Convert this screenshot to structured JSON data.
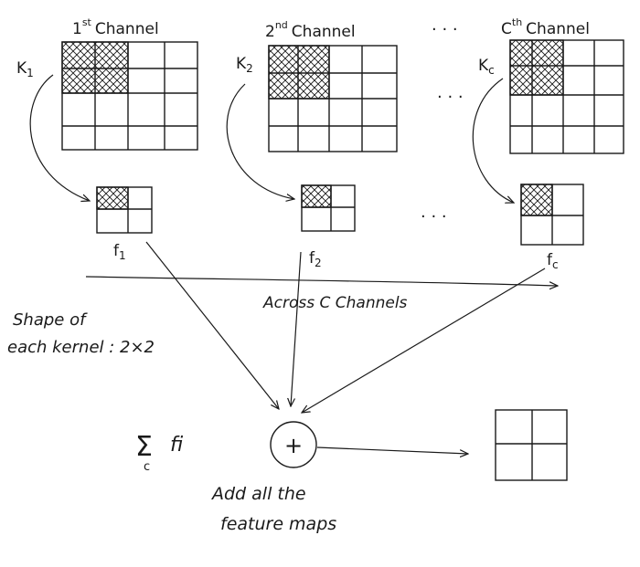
{
  "channels": [
    {
      "label_base": "1",
      "label_sup": "st",
      "label_tail": "Channel",
      "kernel_base": "K",
      "kernel_sub": "1",
      "feature_base": "f",
      "feature_sub": "1"
    },
    {
      "label_base": "2",
      "label_sup": "nd",
      "label_tail": "Channel",
      "kernel_base": "K",
      "kernel_sub": "2",
      "feature_base": "f",
      "feature_sub": "2"
    },
    {
      "label_base": "C",
      "label_sup": "th",
      "label_tail": "Channel",
      "kernel_base": "K",
      "kernel_sub": "c",
      "feature_base": "f",
      "feature_sub": "c"
    }
  ],
  "ellipsis": "· · ·",
  "across_label": "Across  C  Channels",
  "shape_note_line1": "Shape of",
  "shape_note_line2": "each kernel : 2×2",
  "sum_symbol": "Σ",
  "sum_sub": "c",
  "sum_term": "fi",
  "plus_symbol": "+",
  "add_caption_line1": "Add all the",
  "add_caption_line2": "feature maps"
}
